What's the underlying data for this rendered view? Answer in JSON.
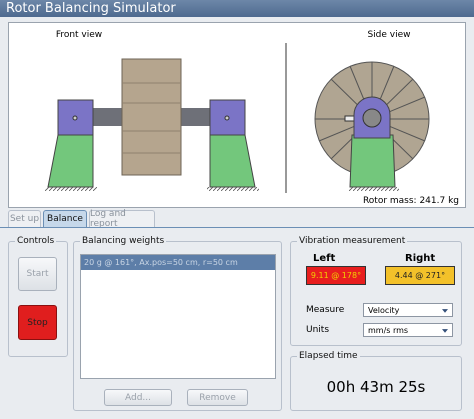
{
  "window": {
    "title": "Rotor Balancing Simulator"
  },
  "view": {
    "front_label": "Front view",
    "side_label": "Side view",
    "rotor_mass": "Rotor mass: 241.7 kg"
  },
  "tabs": [
    "Set up",
    "Balance",
    "Log and report"
  ],
  "controls": {
    "title": "Controls",
    "start": "Start",
    "stop": "Stop"
  },
  "weights": {
    "title": "Balancing weights",
    "items": [
      "20 g @ 161°, Ax.pos=50 cm, r=50 cm"
    ],
    "add": "Add...",
    "remove": "Remove"
  },
  "vibration": {
    "title": "Vibration measurement",
    "left_label": "Left",
    "right_label": "Right",
    "left_value": "9.11 @ 178°",
    "right_value": "4.44 @ 271°",
    "measure_label": "Measure",
    "measure_value": "Velocity",
    "units_label": "Units",
    "units_value": "mm/s rms"
  },
  "elapsed": {
    "title": "Elapsed time",
    "value": "00h 43m 25s"
  }
}
